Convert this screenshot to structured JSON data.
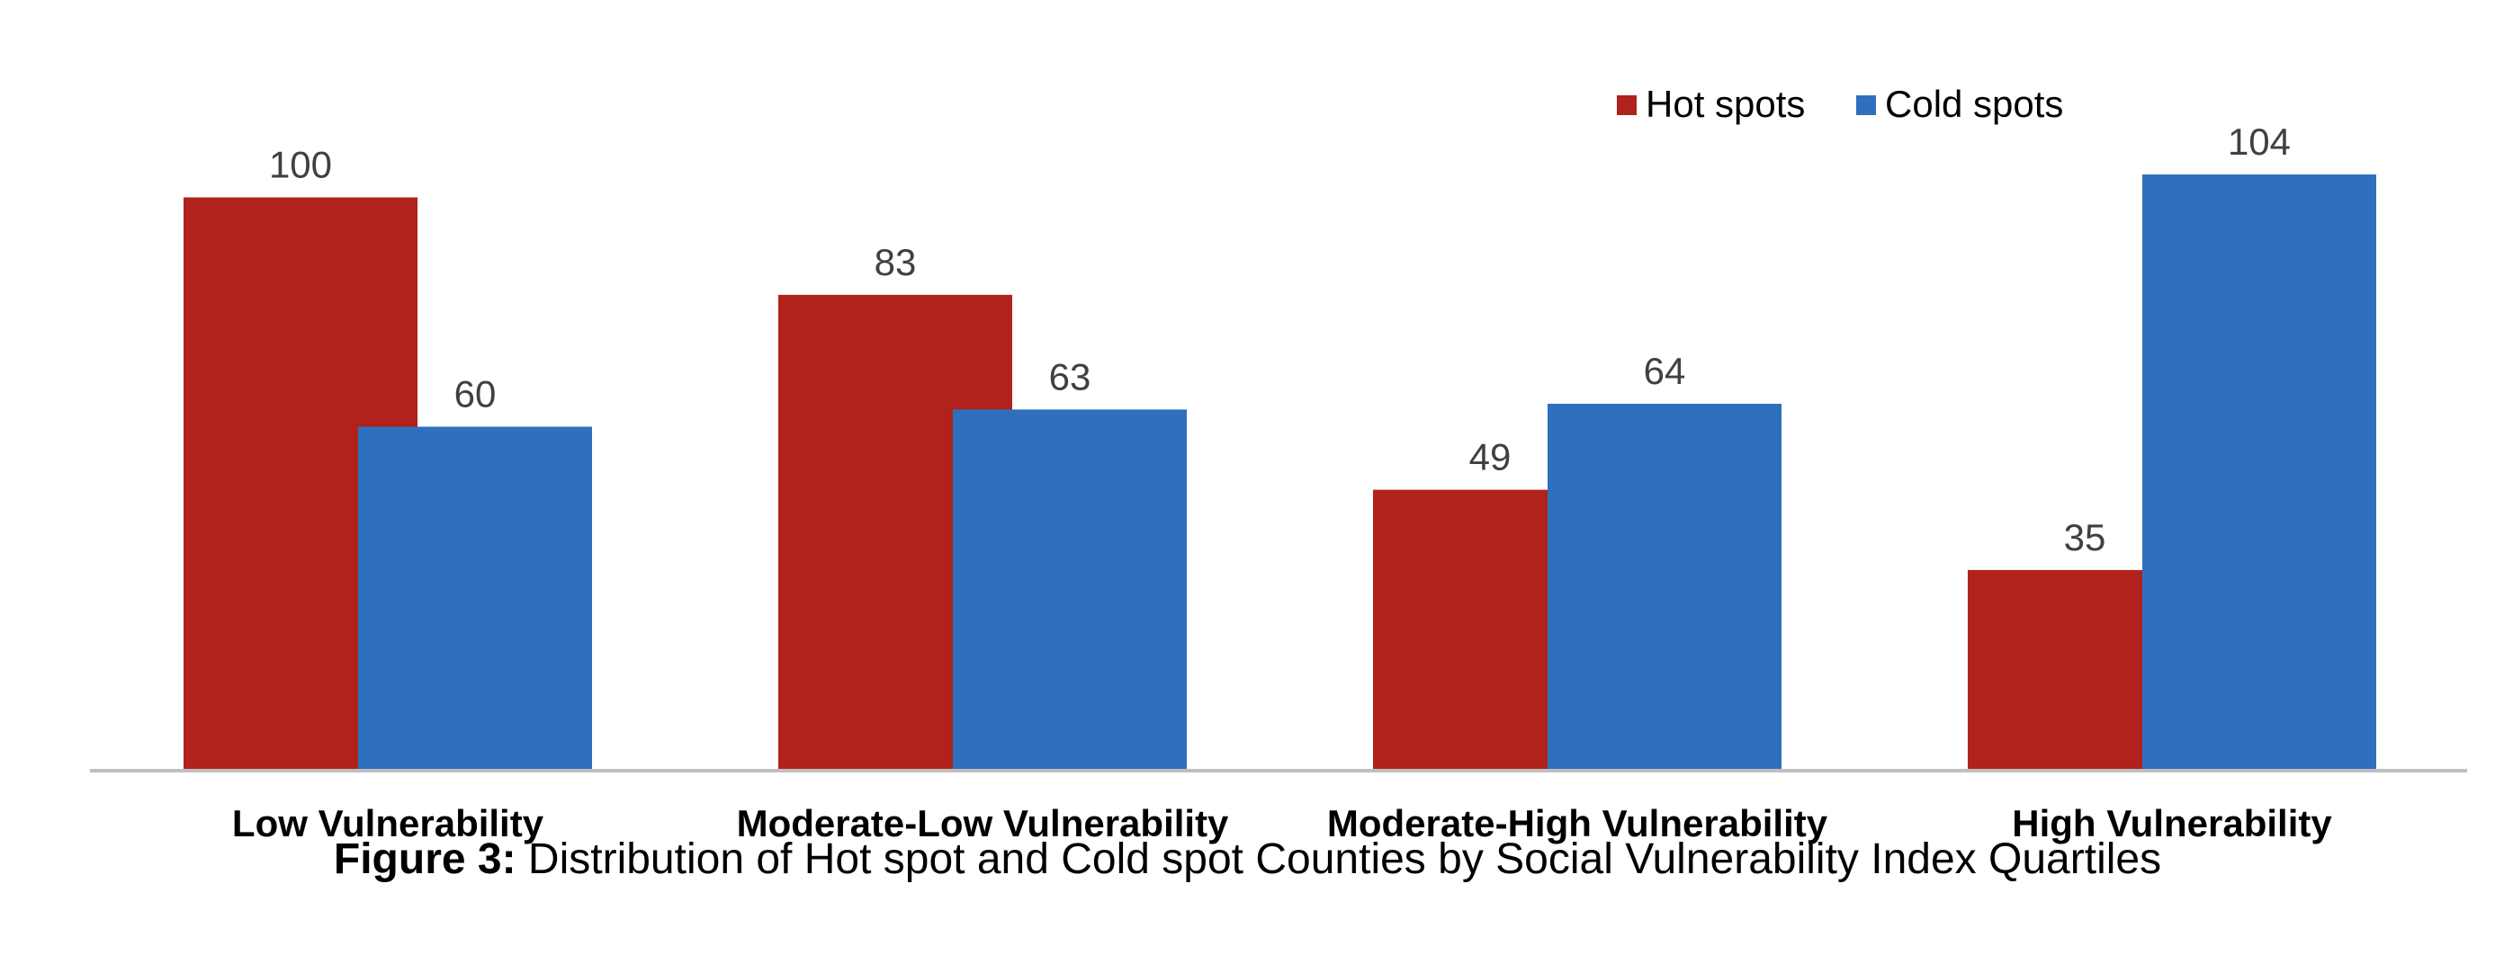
{
  "chart_data": {
    "type": "bar",
    "categories": [
      "Low Vulnerability",
      "Moderate-Low Vulnerability",
      "Moderate-High Vulnerability",
      "High Vulnerability"
    ],
    "series": [
      {
        "name": "Hot spots",
        "values": [
          100,
          83,
          49,
          35
        ],
        "color": "#B0221B"
      },
      {
        "name": "Cold spots",
        "values": [
          60,
          63,
          64,
          104
        ],
        "color": "#2F70BE"
      }
    ],
    "ylim": [
      0,
      104
    ],
    "grid": false,
    "legend_position": "top-right",
    "data_labels": true
  },
  "caption": {
    "lead": "Figure 3:",
    "text": "Distribution of Hot spot and Cold spot Counties by Social Vulnerability Index Quartiles"
  }
}
